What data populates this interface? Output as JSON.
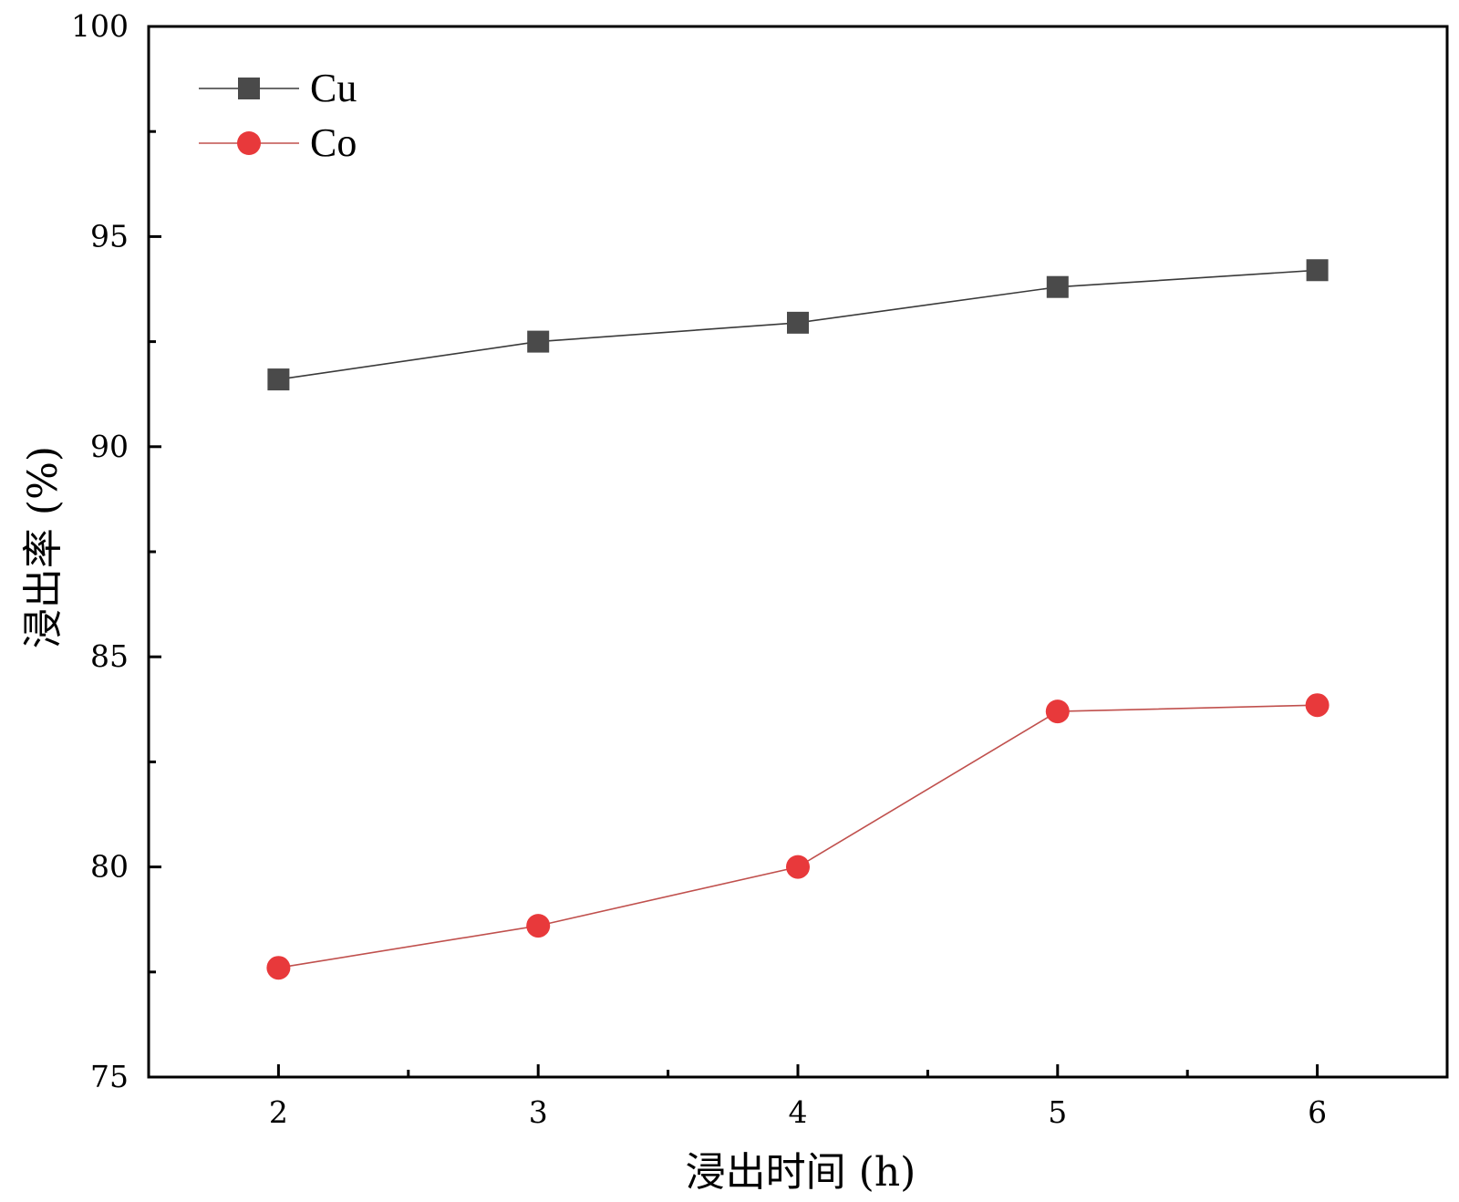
{
  "chart_data": {
    "type": "line",
    "title": "",
    "xlabel": "浸出时间 (h)",
    "ylabel": "浸出率 (%)",
    "x": [
      2,
      3,
      4,
      5,
      6
    ],
    "xlim": [
      1.5,
      6.5
    ],
    "ylim": [
      75,
      100
    ],
    "xticks": [
      "2",
      "3",
      "4",
      "5",
      "6"
    ],
    "yticks": [
      "75",
      "80",
      "85",
      "90",
      "95",
      "100"
    ],
    "grid": false,
    "legend_position": "top-left",
    "series": [
      {
        "name": "Cu",
        "marker": "square",
        "color": "#4a4a4a",
        "line_color": "#3a3a3a",
        "values": [
          91.6,
          92.5,
          92.95,
          93.8,
          94.2
        ]
      },
      {
        "name": "Co",
        "marker": "circle",
        "color": "#e8393b",
        "line_color": "#c0504d",
        "values": [
          77.6,
          78.6,
          80.0,
          83.7,
          83.85
        ]
      }
    ]
  }
}
